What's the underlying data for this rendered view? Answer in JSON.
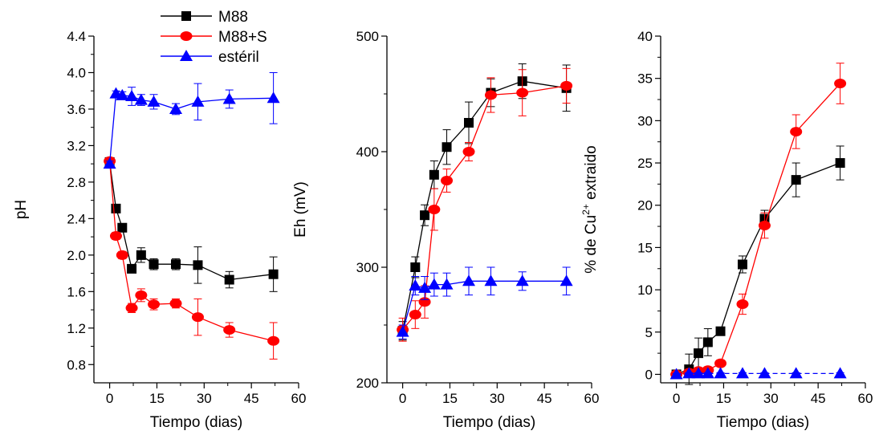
{
  "legend": {
    "entries": [
      {
        "label": "M88",
        "color": "#000000",
        "marker": "square"
      },
      {
        "label": "M88+S",
        "color": "#ff0000",
        "marker": "circle"
      },
      {
        "label": "estéril",
        "color": "#0000ff",
        "marker": "triangle"
      }
    ]
  },
  "chart_data": [
    {
      "type": "line",
      "xlabel": "Tiempo (dias)",
      "ylabel": "pH",
      "xlim": [
        -5,
        60
      ],
      "ylim": [
        0.6,
        4.4
      ],
      "xticks": [
        0,
        15,
        30,
        45,
        60
      ],
      "yticks": [
        0.8,
        1.2,
        1.6,
        2.0,
        2.4,
        2.8,
        3.2,
        3.6,
        4.0,
        4.4
      ],
      "ytick_labels": [
        "0.8",
        "1.2",
        "1.6",
        "2.0",
        "2.4",
        "2.8",
        "3.2",
        "3.6",
        "4.0",
        "4.4"
      ],
      "series": [
        {
          "name": "M88",
          "color": "#000000",
          "marker": "square",
          "x": [
            0,
            2,
            4,
            7,
            10,
            14,
            21,
            28,
            38,
            52
          ],
          "y": [
            3.02,
            2.51,
            2.3,
            1.85,
            2.0,
            1.9,
            1.9,
            1.89,
            1.73,
            1.79
          ],
          "err": [
            0.03,
            0.03,
            0.04,
            0.04,
            0.08,
            0.06,
            0.06,
            0.2,
            0.09,
            0.19
          ]
        },
        {
          "name": "M88+S",
          "color": "#ff0000",
          "marker": "circle",
          "x": [
            0,
            2,
            4,
            7,
            10,
            14,
            21,
            28,
            38,
            52
          ],
          "y": [
            3.03,
            2.21,
            2.0,
            1.42,
            1.56,
            1.46,
            1.47,
            1.32,
            1.18,
            1.06
          ],
          "err": [
            0.03,
            0.04,
            0.04,
            0.05,
            0.07,
            0.06,
            0.05,
            0.2,
            0.08,
            0.2
          ]
        },
        {
          "name": "estéril",
          "color": "#0000ff",
          "marker": "triangle",
          "x": [
            0,
            2,
            4,
            7,
            10,
            14,
            21,
            28,
            38,
            52
          ],
          "y": [
            3.0,
            3.77,
            3.75,
            3.74,
            3.7,
            3.68,
            3.6,
            3.68,
            3.71,
            3.72
          ],
          "err": [
            0.03,
            0.03,
            0.04,
            0.1,
            0.06,
            0.08,
            0.06,
            0.2,
            0.1,
            0.28
          ]
        }
      ]
    },
    {
      "type": "line",
      "xlabel": "Tiempo (dias)",
      "ylabel": "Eh (mV)",
      "xlim": [
        -5,
        60
      ],
      "ylim": [
        200,
        500
      ],
      "xticks": [
        0,
        15,
        30,
        45,
        60
      ],
      "yticks": [
        200,
        300,
        400,
        500
      ],
      "ytick_labels": [
        "200",
        "300",
        "400",
        "500"
      ],
      "series": [
        {
          "name": "M88",
          "color": "#000000",
          "marker": "square",
          "x": [
            0,
            4,
            7,
            10,
            14,
            21,
            28,
            38,
            52
          ],
          "y": [
            245,
            300,
            345,
            380,
            404,
            425,
            451,
            461,
            455
          ],
          "err": [
            8,
            9,
            9,
            12,
            15,
            18,
            12,
            15,
            20
          ]
        },
        {
          "name": "M88+S",
          "color": "#ff0000",
          "marker": "circle",
          "x": [
            0,
            4,
            7,
            10,
            14,
            21,
            28,
            38,
            52
          ],
          "y": [
            246,
            259,
            270,
            350,
            375,
            400,
            449,
            451,
            457
          ],
          "err": [
            10,
            12,
            14,
            18,
            10,
            8,
            15,
            20,
            15
          ]
        },
        {
          "name": "estéril",
          "color": "#0000ff",
          "marker": "triangle",
          "x": [
            0,
            4,
            7,
            10,
            14,
            21,
            28,
            38,
            52
          ],
          "y": [
            244,
            284,
            282,
            285,
            285,
            288,
            288,
            288,
            288
          ],
          "err": [
            6,
            8,
            10,
            10,
            10,
            12,
            12,
            8,
            12
          ]
        }
      ]
    },
    {
      "type": "line",
      "xlabel": "Tiempo (dias)",
      "ylabel": "% de Cu2+ extraido",
      "ylabel_parts": [
        "% de Cu",
        "2+",
        " extraido"
      ],
      "xlim": [
        -5,
        60
      ],
      "ylim": [
        -1,
        40
      ],
      "xticks": [
        0,
        15,
        30,
        45,
        60
      ],
      "yticks": [
        0,
        5,
        10,
        15,
        20,
        25,
        30,
        35,
        40
      ],
      "ytick_labels": [
        "0",
        "5",
        "10",
        "15",
        "20",
        "25",
        "30",
        "35",
        "40"
      ],
      "series": [
        {
          "name": "M88",
          "color": "#000000",
          "marker": "square",
          "x": [
            0,
            4,
            7,
            10,
            14,
            21,
            28,
            38,
            52
          ],
          "y": [
            0,
            0.6,
            2.5,
            3.8,
            5.1,
            13.0,
            18.4,
            23.0,
            25.0
          ],
          "err": [
            0.3,
            1.8,
            1.8,
            1.6,
            0.3,
            1.0,
            1.0,
            2.0,
            2.0
          ]
        },
        {
          "name": "M88+S",
          "color": "#ff0000",
          "marker": "circle",
          "x": [
            0,
            4,
            7,
            10,
            14,
            21,
            28,
            38,
            52
          ],
          "y": [
            0,
            0.2,
            0.4,
            0.5,
            1.3,
            8.3,
            17.6,
            28.7,
            34.4
          ],
          "err": [
            0.2,
            0.3,
            0.3,
            0.3,
            0.4,
            1.2,
            1.5,
            2.0,
            2.4
          ]
        },
        {
          "name": "estéril",
          "color": "#0000ff",
          "marker": "triangle",
          "x": [
            0,
            4,
            7,
            10,
            14,
            21,
            28,
            38,
            52
          ],
          "y": [
            0,
            0.1,
            0.1,
            0.1,
            0.1,
            0.1,
            0.1,
            0.1,
            0.1
          ],
          "err": [
            0.1,
            0.1,
            0.1,
            0.1,
            0.1,
            0.1,
            0.1,
            0.1,
            0.1
          ]
        }
      ]
    }
  ]
}
